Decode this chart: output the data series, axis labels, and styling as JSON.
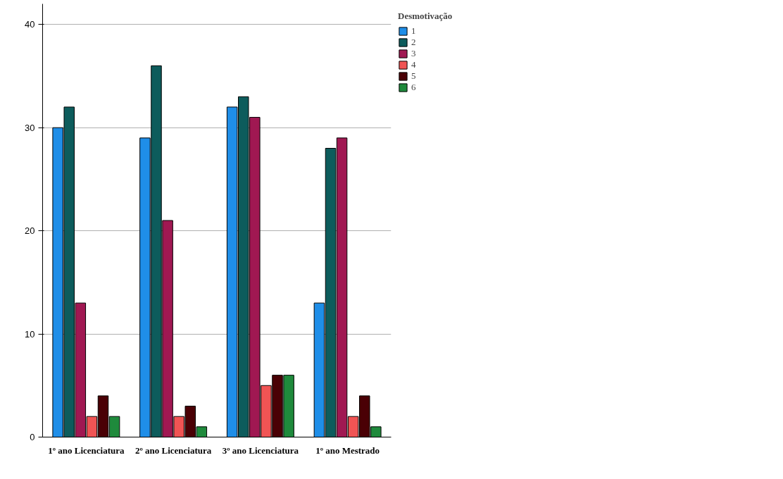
{
  "chart_data": {
    "type": "bar",
    "categories": [
      "1º ano Licenciatura",
      "2º ano Licenciatura",
      "3º ano Licenciatura",
      "1º ano Mestrado"
    ],
    "legend_title": "Desmotivação",
    "series": [
      {
        "name": "1",
        "color": "#1f8ee8",
        "values": [
          30,
          29,
          32,
          13
        ]
      },
      {
        "name": "2",
        "color": "#0d5c5c",
        "values": [
          32,
          36,
          33,
          28
        ]
      },
      {
        "name": "3",
        "color": "#a01852",
        "values": [
          13,
          21,
          31,
          29
        ]
      },
      {
        "name": "4",
        "color": "#f05454",
        "values": [
          2,
          2,
          5,
          2
        ]
      },
      {
        "name": "5",
        "color": "#4a0005",
        "values": [
          4,
          3,
          6,
          4
        ]
      },
      {
        "name": "6",
        "color": "#1f8a3c",
        "values": [
          2,
          1,
          6,
          1
        ]
      }
    ],
    "ylim": [
      0,
      42
    ],
    "yticks": [
      0,
      10,
      20,
      30,
      40
    ],
    "grid": "y",
    "legend": "top right"
  }
}
